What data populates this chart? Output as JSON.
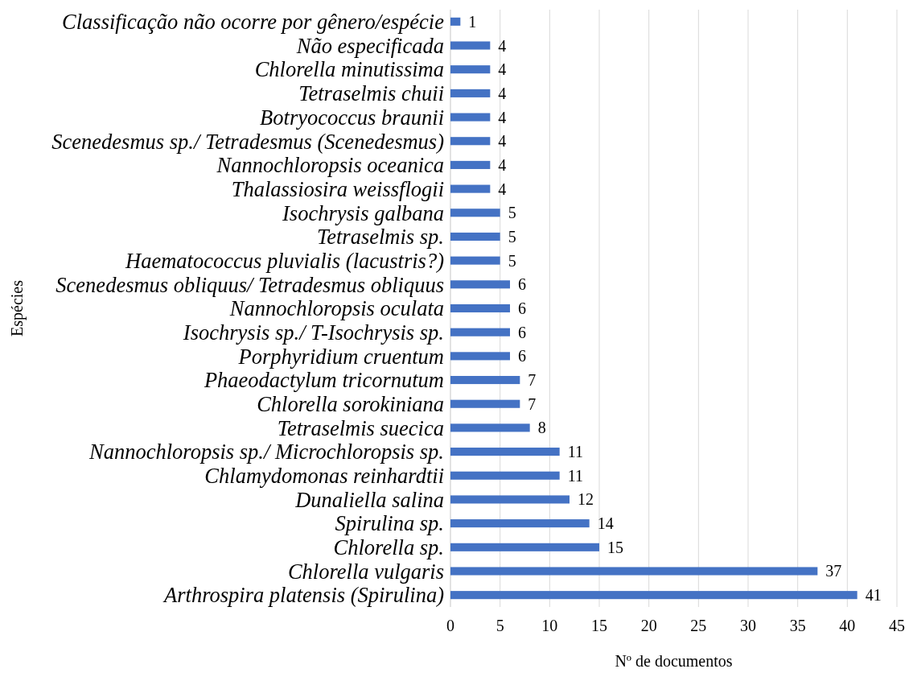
{
  "chart_data": {
    "type": "bar",
    "orientation": "horizontal",
    "xlabel": "Nº de documentos",
    "ylabel": "Espécies",
    "categories": [
      "Classificação não ocorre por gênero/espécie",
      "Não especificada",
      "Chlorella minutissima",
      "Tetraselmis chuii",
      "Botryococcus braunii",
      "Scenedesmus sp./ Tetradesmus (Scenedesmus)",
      "Nannochloropsis oceanica",
      "Thalassiosira weissflogii",
      "Isochrysis galbana",
      "Tetraselmis sp.",
      "Haematococcus pluvialis (lacustris?)",
      "Scenedesmus obliquus/ Tetradesmus obliquus",
      "Nannochloropsis oculata",
      "Isochrysis sp./ T-Isochrysis sp.",
      "Porphyridium cruentum",
      "Phaeodactylum tricornutum",
      "Chlorella sorokiniana",
      "Tetraselmis suecica",
      "Nannochloropsis sp./ Microchloropsis sp.",
      "Chlamydomonas reinhardtii",
      "Dunaliella salina",
      "Spirulina sp.",
      "Chlorella sp.",
      "Chlorella vulgaris",
      "Arthrospira platensis (Spirulina)"
    ],
    "values": [
      1,
      4,
      4,
      4,
      4,
      4,
      4,
      4,
      5,
      5,
      5,
      6,
      6,
      6,
      6,
      7,
      7,
      8,
      11,
      11,
      12,
      14,
      15,
      37,
      41
    ],
    "color": "#4472c4",
    "xlim": [
      0,
      45
    ],
    "xticks": [
      0,
      5,
      10,
      15,
      20,
      25,
      30,
      35,
      40,
      45
    ],
    "grid": "x",
    "data_labels": true
  }
}
